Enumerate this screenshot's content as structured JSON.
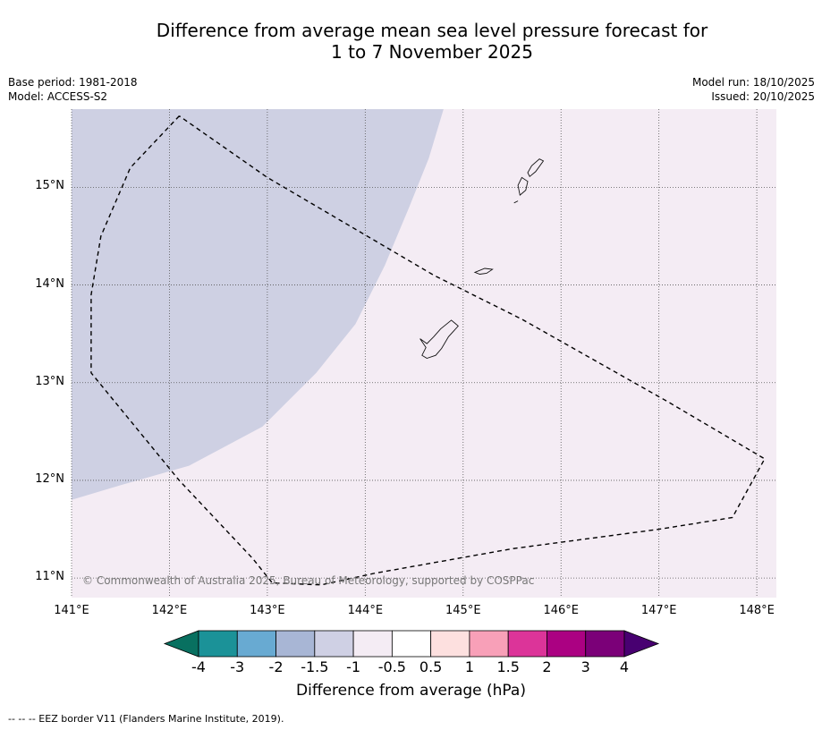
{
  "title": {
    "line1": "Difference from average mean sea level pressure forecast for",
    "line2": "1 to 7 November 2025"
  },
  "meta_left": {
    "base_period": "Base period: 1981-2018",
    "model": "Model: ACCESS-S2"
  },
  "meta_right": {
    "model_run": "Model run: 18/10/2025",
    "issued": "Issued: 20/10/2025"
  },
  "map": {
    "lon_range": [
      141.0,
      148.2
    ],
    "lat_range": [
      10.8,
      15.8
    ],
    "lon_ticks": [
      {
        "value": 141,
        "label": "141°E"
      },
      {
        "value": 142,
        "label": "142°E"
      },
      {
        "value": 143,
        "label": "143°E"
      },
      {
        "value": 144,
        "label": "144°E"
      },
      {
        "value": 145,
        "label": "145°E"
      },
      {
        "value": 146,
        "label": "146°E"
      },
      {
        "value": 147,
        "label": "147°E"
      },
      {
        "value": 148,
        "label": "148°E"
      }
    ],
    "lat_ticks": [
      {
        "value": 15,
        "label": "15°N"
      },
      {
        "value": 14,
        "label": "14°N"
      },
      {
        "value": 13,
        "label": "13°N"
      },
      {
        "value": 12,
        "label": "12°N"
      },
      {
        "value": 11,
        "label": "11°N"
      }
    ],
    "background_color": "#f4ecf4",
    "shaded_region": {
      "band": "-1.5 to -1",
      "color": "#ced0e3",
      "boundary": [
        [
          141.0,
          15.8
        ],
        [
          144.8,
          15.8
        ],
        [
          144.65,
          15.3
        ],
        [
          144.45,
          14.8
        ],
        [
          144.2,
          14.2
        ],
        [
          143.9,
          13.6
        ],
        [
          143.5,
          13.1
        ],
        [
          142.95,
          12.55
        ],
        [
          142.2,
          12.15
        ],
        [
          141.5,
          11.95
        ],
        [
          141.0,
          11.8
        ]
      ]
    },
    "eez_border": [
      [
        142.1,
        15.73
      ],
      [
        141.6,
        15.2
      ],
      [
        141.3,
        14.5
      ],
      [
        141.2,
        13.9
      ],
      [
        141.2,
        13.1
      ],
      [
        142.1,
        12.0
      ],
      [
        142.85,
        11.2
      ],
      [
        143.05,
        10.95
      ],
      [
        143.55,
        10.93
      ],
      [
        144.1,
        11.05
      ],
      [
        145.5,
        11.3
      ],
      [
        147.0,
        11.5
      ],
      [
        147.75,
        11.62
      ],
      [
        148.08,
        12.22
      ],
      [
        147.1,
        12.8
      ],
      [
        145.6,
        13.65
      ],
      [
        144.7,
        14.1
      ],
      [
        143.0,
        15.1
      ],
      [
        142.1,
        15.73
      ]
    ],
    "islands": [
      {
        "name": "Guam",
        "outline": [
          [
            144.63,
            13.25
          ],
          [
            144.72,
            13.28
          ],
          [
            144.78,
            13.35
          ],
          [
            144.85,
            13.47
          ],
          [
            144.95,
            13.58
          ],
          [
            144.88,
            13.64
          ],
          [
            144.77,
            13.55
          ],
          [
            144.7,
            13.47
          ],
          [
            144.63,
            13.4
          ],
          [
            144.56,
            13.45
          ],
          [
            144.62,
            13.36
          ],
          [
            144.58,
            13.28
          ],
          [
            144.63,
            13.25
          ]
        ]
      },
      {
        "name": "Rota",
        "outline": [
          [
            145.12,
            14.13
          ],
          [
            145.22,
            14.17
          ],
          [
            145.3,
            14.16
          ],
          [
            145.24,
            14.12
          ],
          [
            145.17,
            14.11
          ],
          [
            145.12,
            14.13
          ]
        ]
      },
      {
        "name": "Tinian",
        "outline": [
          [
            145.58,
            14.92
          ],
          [
            145.64,
            14.97
          ],
          [
            145.66,
            15.06
          ],
          [
            145.6,
            15.1
          ],
          [
            145.56,
            15.02
          ],
          [
            145.58,
            14.92
          ]
        ]
      },
      {
        "name": "Saipan",
        "outline": [
          [
            145.68,
            15.11
          ],
          [
            145.74,
            15.16
          ],
          [
            145.82,
            15.27
          ],
          [
            145.78,
            15.29
          ],
          [
            145.7,
            15.22
          ],
          [
            145.66,
            15.15
          ],
          [
            145.68,
            15.11
          ]
        ]
      },
      {
        "name": "Aguijan",
        "outline": [
          [
            145.52,
            14.84
          ],
          [
            145.56,
            14.86
          ]
        ]
      }
    ],
    "copyright": "© Commonwealth of Australia 2025, Bureau of Meteorology, supported by COSPPac"
  },
  "colorbar": {
    "title": "Difference from average (hPa)",
    "bins": [
      {
        "color": "#087060"
      },
      {
        "color": "#1b9298"
      },
      {
        "color": "#68aad2"
      },
      {
        "color": "#a8b6d5"
      },
      {
        "color": "#cfd0e4"
      },
      {
        "color": "#f4ecf4"
      },
      {
        "color": "#ffffff"
      },
      {
        "color": "#fde0df"
      },
      {
        "color": "#f8a0b8"
      },
      {
        "color": "#dc3499"
      },
      {
        "color": "#ab0182"
      },
      {
        "color": "#7b0078"
      },
      {
        "color": "#480071"
      }
    ],
    "tick_labels": [
      "-4",
      "-3",
      "-2",
      "-1.5",
      "-1",
      "-0.5",
      "0.5",
      "1",
      "1.5",
      "2",
      "3",
      "4"
    ]
  },
  "footnote": "-- -- -- EEZ border V11 (Flanders Marine Institute, 2019)."
}
